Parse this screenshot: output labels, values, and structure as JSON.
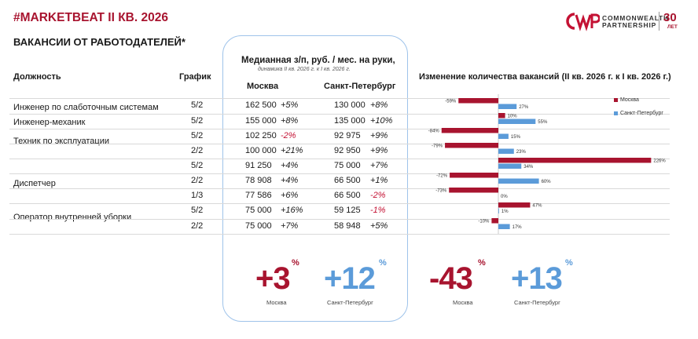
{
  "header": {
    "brand": "#MARKETBEAT",
    "period": " II КВ. 2026",
    "subtitle": "ВАКАНСИИ ОТ РАБОТОДАТЕЛЕЙ*"
  },
  "logo": {
    "line1": "COMMONWEALTH",
    "line2": "PARTNERSHIP",
    "years": "30",
    "years_sub": "ЛЕТ"
  },
  "columns": {
    "position": "Должность",
    "schedule": "График",
    "salary_title": "Медианная з/п, руб. / мес. на руки,",
    "salary_sub": "динамика II кв. 2026 г. к I кв. 2026 г.",
    "moscow": "Москва",
    "spb": "Санкт-Петербург",
    "chart_title": "Изменение количества вакансий (II кв. 2026 г. к I кв. 2026 г.)"
  },
  "rows": [
    {
      "position": "Инженер по слаботочным системам",
      "schedule": "5/2",
      "msk": "162 500",
      "msk_dyn": "+5%",
      "spb": "130 000",
      "spb_dyn": "+8%"
    },
    {
      "position": "Инженер-механик",
      "schedule": "5/2",
      "msk": "155 000",
      "msk_dyn": "+8%",
      "spb": "135 000",
      "spb_dyn": "+10%"
    },
    {
      "position": "Техник по эксплуатации",
      "schedule": "5/2",
      "msk": "102 250",
      "msk_dyn": "-2%",
      "spb": "92 975",
      "spb_dyn": "+9%"
    },
    {
      "position": "",
      "schedule": "2/2",
      "msk": "100 000",
      "msk_dyn": "+21%",
      "spb": "92 950",
      "spb_dyn": "+9%"
    },
    {
      "position": "",
      "schedule": "5/2",
      "msk": "91 250",
      "msk_dyn": "+4%",
      "spb": "75 000",
      "spb_dyn": "+7%"
    },
    {
      "position": "Диспетчер",
      "schedule": "2/2",
      "msk": "78 908",
      "msk_dyn": "+4%",
      "spb": "66 500",
      "spb_dyn": "+1%"
    },
    {
      "position": "",
      "schedule": "1/3",
      "msk": "77 586",
      "msk_dyn": "+6%",
      "spb": "66 500",
      "spb_dyn": "-2%"
    },
    {
      "position": "Оператор внутренней уборки",
      "schedule": "5/2",
      "msk": "75 000",
      "msk_dyn": "+16%",
      "spb": "59 125",
      "spb_dyn": "-1%"
    },
    {
      "position": "",
      "schedule": "2/2",
      "msk": "75 000",
      "msk_dyn": "+7%",
      "spb": "58 948",
      "spb_dyn": "+5%"
    }
  ],
  "summary": {
    "salary_msk": "+3",
    "salary_spb": "+12",
    "vac_msk": "-43",
    "vac_spb": "+13",
    "pct": "%",
    "label_msk": "Москва",
    "label_spb": "Санкт-Петербург"
  },
  "colors": {
    "moscow": "#a8142f",
    "spb": "#5b9bd9"
  },
  "chart_data": {
    "type": "bar",
    "orientation": "horizontal",
    "title": "Изменение количества вакансий (II кв. 2026 г. к I кв. 2026 г.)",
    "legend_position": "top-right",
    "series": [
      {
        "name": "Москва",
        "values": [
          -59,
          10,
          -84,
          -79,
          226,
          -72,
          -73,
          47,
          -10
        ],
        "labels": [
          "-59%",
          "10%",
          "-84%",
          "-79%",
          "226%",
          "-72%",
          "-73%",
          "47%",
          "-10%"
        ]
      },
      {
        "name": "Санкт-Петербург",
        "values": [
          27,
          55,
          15,
          23,
          34,
          60,
          0,
          1,
          17
        ],
        "labels": [
          "27%",
          "55%",
          "15%",
          "23%",
          "34%",
          "60%",
          "0%",
          "1%",
          "17%"
        ]
      }
    ]
  }
}
